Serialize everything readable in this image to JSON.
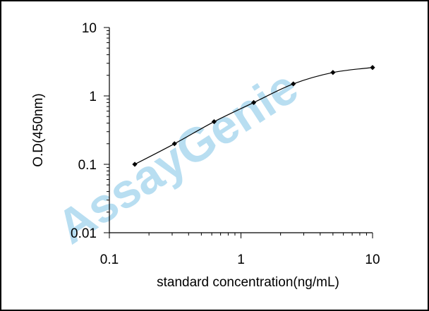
{
  "chart_data": {
    "type": "line",
    "title": "",
    "xlabel": "standard concentration(ng/mL)",
    "ylabel": "O.D(450nm)",
    "x_scale": "log",
    "y_scale": "log",
    "xlim": [
      0.1,
      10
    ],
    "ylim": [
      0.01,
      10
    ],
    "x_ticks": [
      0.1,
      1,
      10
    ],
    "x_tick_labels": [
      "0.1",
      "1",
      "10"
    ],
    "y_ticks": [
      0.01,
      0.1,
      1,
      10
    ],
    "y_tick_labels": [
      "0.01",
      "0.1",
      "1",
      "10"
    ],
    "grid": false,
    "legend": "none",
    "series": [
      {
        "x": [
          0.156,
          0.3125,
          0.625,
          1.25,
          2.5,
          5,
          10
        ],
        "y": [
          0.1,
          0.2,
          0.42,
          0.8,
          1.5,
          2.2,
          2.6
        ],
        "color": "#000000",
        "marker": "diamond"
      }
    ]
  },
  "watermark": {
    "text": "AssayGenie",
    "color": "#7ec3e6"
  }
}
